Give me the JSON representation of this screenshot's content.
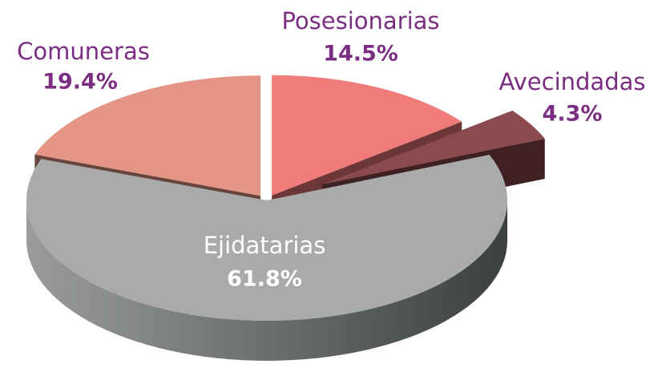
{
  "chart_data": {
    "type": "pie",
    "categories": [
      "Posesionarias",
      "Avecindadas",
      "Ejidatarias",
      "Comuneras"
    ],
    "values": [
      14.5,
      4.3,
      61.8,
      19.4
    ],
    "value_labels": [
      "14.5%",
      "4.3%",
      "61.8%",
      "19.4%"
    ],
    "colors": [
      "#f07b78",
      "#8b4a4e",
      "#a9abab",
      "#e49585"
    ]
  }
}
